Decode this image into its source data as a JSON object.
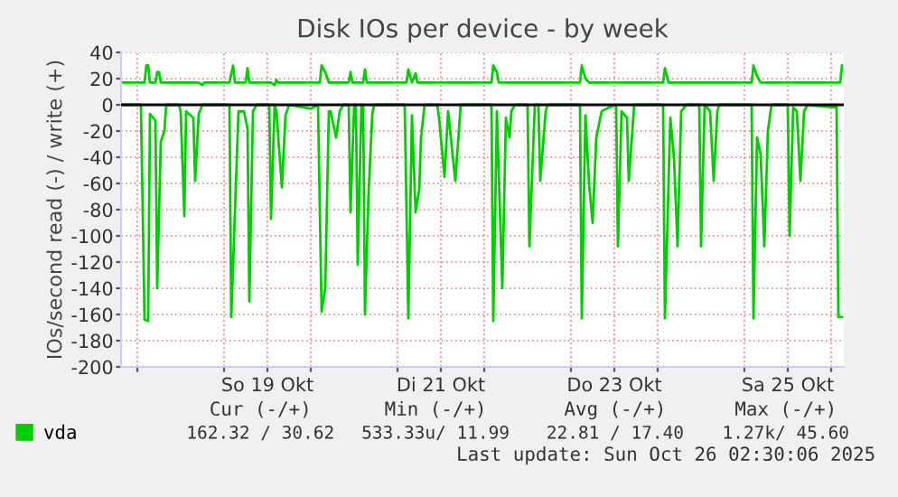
{
  "chart_data": {
    "type": "line",
    "title": "Disk IOs per device - by week",
    "ylabel": "IOs/second read (-) / write (+)",
    "series": [
      {
        "name": "vda",
        "color": "#00cc00",
        "x": [
          "2025-10-17T19:30",
          "2025-10-18T01:30",
          "2025-10-18T02:00",
          "2025-10-18T02:30",
          "2025-10-18T03:00",
          "2025-10-18T03:30",
          "2025-10-18T05:00",
          "2025-10-18T05:30",
          "2025-10-18T06:00",
          "2025-10-18T06:30",
          "2025-10-18T12:00",
          "2025-10-18T17:00",
          "2025-10-18T18:00",
          "2025-10-18T18:30",
          "2025-10-19T01:30",
          "2025-10-19T02:30",
          "2025-10-19T03:00",
          "2025-10-19T06:00",
          "2025-10-19T06:30",
          "2025-10-19T07:00",
          "2025-10-19T13:00",
          "2025-10-19T14:00",
          "2025-10-19T14:30",
          "2025-10-19T15:00",
          "2025-10-20T00:00",
          "2025-10-20T02:30",
          "2025-10-20T03:00",
          "2025-10-20T04:00",
          "2025-10-20T05:00",
          "2025-10-20T10:30",
          "2025-10-20T11:00",
          "2025-10-20T11:30",
          "2025-10-20T14:30",
          "2025-10-20T15:00",
          "2025-10-20T15:30",
          "2025-10-21T02:30",
          "2025-10-21T03:00",
          "2025-10-21T04:00",
          "2025-10-21T05:00",
          "2025-10-21T05:30",
          "2025-10-22T02:00",
          "2025-10-22T02:30",
          "2025-10-22T03:30",
          "2025-10-22T04:00",
          "2025-10-23T02:30",
          "2025-10-23T03:00",
          "2025-10-23T04:00",
          "2025-10-23T05:00",
          "2025-10-24T01:30",
          "2025-10-24T02:00",
          "2025-10-24T03:00",
          "2025-10-25T02:00",
          "2025-10-25T02:30",
          "2025-10-25T03:30",
          "2025-10-25T04:30",
          "2025-10-26T02:30",
          "2025-10-26T03:00"
        ],
        "values": [
          17,
          17,
          17,
          30,
          30,
          17,
          17,
          25,
          25,
          17,
          17,
          17,
          15,
          17,
          17,
          30,
          17,
          17,
          28,
          17,
          17,
          15,
          19,
          17,
          17,
          17,
          30,
          25,
          17,
          17,
          25,
          17,
          17,
          27,
          17,
          17,
          27,
          17,
          24,
          17,
          17,
          30,
          25,
          17,
          17,
          30,
          20,
          17,
          17,
          28,
          17,
          17,
          30,
          22,
          17,
          17,
          30
        ]
      },
      {
        "color": "#00cc00",
        "x": [
          "2025-10-17T19:30",
          "2025-10-18T01:00",
          "2025-10-18T02:00",
          "2025-10-18T03:00",
          "2025-10-18T03:30",
          "2025-10-18T05:00",
          "2025-10-18T05:30",
          "2025-10-18T06:30",
          "2025-10-18T07:30",
          "2025-10-18T08:00",
          "2025-10-18T11:30",
          "2025-10-18T12:00",
          "2025-10-18T13:00",
          "2025-10-18T13:30",
          "2025-10-18T15:30",
          "2025-10-18T16:00",
          "2025-10-18T17:00",
          "2025-10-18T18:00",
          "2025-10-19T01:30",
          "2025-10-19T02:00",
          "2025-10-19T04:00",
          "2025-10-19T05:30",
          "2025-10-19T06:30",
          "2025-10-19T07:00",
          "2025-10-19T08:00",
          "2025-10-19T09:00",
          "2025-10-19T12:30",
          "2025-10-19T13:00",
          "2025-10-19T14:00",
          "2025-10-19T14:30",
          "2025-10-19T16:00",
          "2025-10-19T17:00",
          "2025-10-19T18:00",
          "2025-10-20T00:00",
          "2025-10-20T02:00",
          "2025-10-20T03:00",
          "2025-10-20T04:00",
          "2025-10-20T05:00",
          "2025-10-20T05:30",
          "2025-10-20T07:00",
          "2025-10-20T08:00",
          "2025-10-20T09:00",
          "2025-10-20T10:30",
          "2025-10-20T11:00",
          "2025-10-20T12:00",
          "2025-10-20T12:30",
          "2025-10-20T13:00",
          "2025-10-20T14:00",
          "2025-10-20T14:30",
          "2025-10-20T15:00",
          "2025-10-20T16:00",
          "2025-10-20T17:00",
          "2025-10-20T17:30",
          "2025-10-21T02:00",
          "2025-10-21T03:00",
          "2025-10-21T04:00",
          "2025-10-21T05:00",
          "2025-10-21T06:00",
          "2025-10-21T06:30",
          "2025-10-21T07:30",
          "2025-10-21T11:00",
          "2025-10-21T11:30",
          "2025-10-21T13:00",
          "2025-10-21T14:00",
          "2025-10-21T16:00",
          "2025-10-21T17:30",
          "2025-10-22T02:00",
          "2025-10-22T02:30",
          "2025-10-22T03:30",
          "2025-10-22T05:00",
          "2025-10-22T06:00",
          "2025-10-22T07:00",
          "2025-10-22T07:30",
          "2025-10-22T08:30",
          "2025-10-22T12:00",
          "2025-10-22T12:30",
          "2025-10-22T14:00",
          "2025-10-22T15:00",
          "2025-10-22T15:30",
          "2025-10-22T17:00",
          "2025-10-22T17:30",
          "2025-10-23T02:30",
          "2025-10-23T03:00",
          "2025-10-23T04:00",
          "2025-10-23T05:00",
          "2025-10-23T06:00",
          "2025-10-23T07:00",
          "2025-10-23T08:30",
          "2025-10-23T10:30",
          "2025-10-23T12:30",
          "2025-10-23T13:00",
          "2025-10-23T14:00",
          "2025-10-23T15:30",
          "2025-10-23T16:00",
          "2025-10-23T17:30",
          "2025-10-24T01:30",
          "2025-10-24T02:00",
          "2025-10-24T03:30",
          "2025-10-24T04:30",
          "2025-10-24T05:30",
          "2025-10-24T06:30",
          "2025-10-24T08:00",
          "2025-10-24T11:30",
          "2025-10-24T12:00",
          "2025-10-24T13:00",
          "2025-10-24T14:30",
          "2025-10-24T15:30",
          "2025-10-24T16:30",
          "2025-10-24T17:00",
          "2025-10-25T02:00",
          "2025-10-25T02:30",
          "2025-10-25T03:30",
          "2025-10-25T04:30",
          "2025-10-25T05:30",
          "2025-10-25T06:30",
          "2025-10-25T07:30",
          "2025-10-25T12:00",
          "2025-10-25T12:30",
          "2025-10-25T13:30",
          "2025-10-25T14:30",
          "2025-10-25T15:30",
          "2025-10-25T16:30",
          "2025-10-25T17:30",
          "2025-10-26T01:00",
          "2025-10-26T01:30",
          "2025-10-26T02:00",
          "2025-10-26T03:00"
        ],
        "values": [
          0,
          0,
          -164,
          -165,
          -7,
          -12,
          -140,
          -28,
          -20,
          0,
          0,
          -5,
          -85,
          -5,
          -10,
          -58,
          -7,
          0,
          0,
          -162,
          -5,
          -5,
          -18,
          -150,
          -5,
          0,
          0,
          -87,
          0,
          -5,
          -63,
          -8,
          0,
          -3,
          0,
          -158,
          -140,
          -5,
          -5,
          -25,
          -5,
          0,
          0,
          -82,
          0,
          0,
          -122,
          0,
          0,
          -160,
          -67,
          -8,
          0,
          0,
          -163,
          -8,
          -82,
          -65,
          -25,
          0,
          0,
          -10,
          -55,
          -5,
          -58,
          0,
          0,
          -165,
          -5,
          -140,
          -10,
          -25,
          -5,
          0,
          0,
          -108,
          0,
          0,
          -58,
          -5,
          0,
          0,
          -163,
          -8,
          -60,
          -90,
          -25,
          -5,
          -2,
          0,
          -108,
          -5,
          -10,
          -58,
          0,
          0,
          -163,
          -10,
          -40,
          -108,
          -5,
          0,
          0,
          -108,
          0,
          -5,
          -58,
          -5,
          0,
          0,
          -163,
          -25,
          -38,
          -108,
          -20,
          0,
          0,
          -100,
          -2,
          -5,
          -58,
          -5,
          0,
          -2,
          0,
          -162,
          -162
        ]
      }
    ],
    "xlim": [
      "2025-10-17T19:30",
      "2025-10-26T03:30"
    ],
    "xticks": [
      {
        "value": "2025-10-18T00:00",
        "label": null
      },
      {
        "value": "2025-10-19T00:00",
        "label": null
      },
      {
        "value": "2025-10-19T12:00",
        "label": "So 19 Okt"
      },
      {
        "value": "2025-10-20T00:00",
        "label": null
      },
      {
        "value": "2025-10-21T00:00",
        "label": null
      },
      {
        "value": "2025-10-21T12:00",
        "label": "Di 21 Okt"
      },
      {
        "value": "2025-10-22T00:00",
        "label": null
      },
      {
        "value": "2025-10-23T00:00",
        "label": null
      },
      {
        "value": "2025-10-23T12:00",
        "label": "Do 23 Okt"
      },
      {
        "value": "2025-10-24T00:00",
        "label": null
      },
      {
        "value": "2025-10-25T00:00",
        "label": null
      },
      {
        "value": "2025-10-25T12:00",
        "label": "Sa 25 Okt"
      },
      {
        "value": "2025-10-26T00:00",
        "label": null
      }
    ],
    "ylim": [
      -200,
      40
    ],
    "yticks": [
      -200,
      -180,
      -160,
      -140,
      -120,
      -100,
      -80,
      -60,
      -40,
      -20,
      0,
      20,
      40
    ],
    "ref_lines": [
      {
        "axis": "y",
        "value": 0,
        "color": "#000000"
      }
    ],
    "grid": true,
    "legend": "bottom left",
    "annotations": [
      "Cur (-/+)",
      "Min (-/+)",
      "Avg (-/+)",
      "Max (-/+)",
      "162.32 / 30.62",
      "533.33u/ 11.99",
      "22.81 / 17.40",
      "1.27k/ 45.60",
      "Last update: Sun Oct 26 02:30:06 2025"
    ]
  }
}
